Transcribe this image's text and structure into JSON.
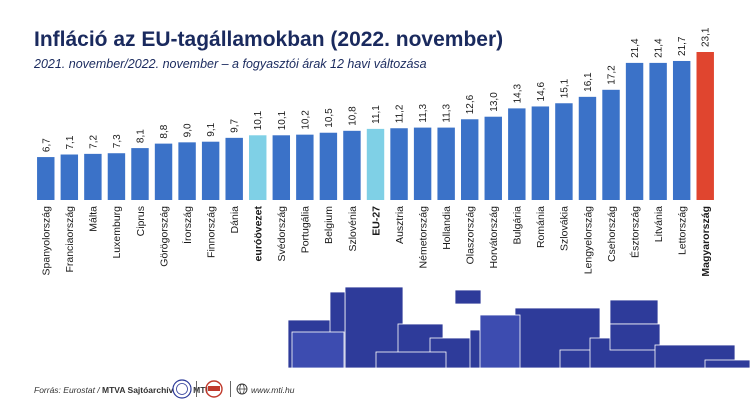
{
  "chart_data": {
    "type": "bar",
    "title": "Infláció az EU-tagállamokban (2022. november)",
    "subtitle": "2021. november/2022. november – a fogyasztói árak 12 havi változása",
    "categories": [
      "Spanyolország",
      "Franciaország",
      "Málta",
      "Luxemburg",
      "Ciprus",
      "Görögország",
      "Írország",
      "Finnország",
      "Dánia",
      "euróövezet",
      "Svédország",
      "Portugália",
      "Belgium",
      "Szlovénia",
      "EU-27",
      "Ausztria",
      "Németország",
      "Hollandia",
      "Olaszország",
      "Horvátország",
      "Bulgária",
      "Románia",
      "Szlovákia",
      "Lengyelország",
      "Csehország",
      "Észtország",
      "Litvánia",
      "Lettország",
      "Magyarország"
    ],
    "values": [
      6.7,
      7.1,
      7.2,
      7.3,
      8.1,
      8.8,
      9.0,
      9.1,
      9.7,
      10.1,
      10.1,
      10.2,
      10.5,
      10.8,
      11.1,
      11.2,
      11.3,
      11.3,
      12.6,
      13.0,
      14.3,
      14.6,
      15.1,
      16.1,
      17.2,
      21.4,
      21.4,
      21.7,
      23.1
    ],
    "value_labels": [
      "6,7",
      "7,1",
      "7,2",
      "7,3",
      "8,1",
      "8,8",
      "9,0",
      "9,1",
      "9,7",
      "10,1",
      "10,1",
      "10,2",
      "10,5",
      "10,8",
      "11,1",
      "11,2",
      "11,3",
      "11,3",
      "12,6",
      "13,0",
      "14,3",
      "14,6",
      "15,1",
      "16,1",
      "17,2",
      "21,4",
      "21,4",
      "21,7",
      "23,1"
    ],
    "highlight_light": [
      "euróövezet",
      "EU-27"
    ],
    "highlight_red": [
      "Magyarország"
    ],
    "bold_categories": [
      "euróövezet",
      "EU-27",
      "Magyarország"
    ],
    "ylim": [
      0,
      23.1
    ],
    "grid": false,
    "colors": {
      "default": "#3b72c8",
      "light": "#7fd0e6",
      "red": "#e0452f",
      "title": "#1a2a5e"
    }
  },
  "footer": {
    "source_prefix": "Forrás: Eurostat / ",
    "source_bold": "MTVA Sajtóarchívum / MTI",
    "website": "www.mti.hu"
  }
}
